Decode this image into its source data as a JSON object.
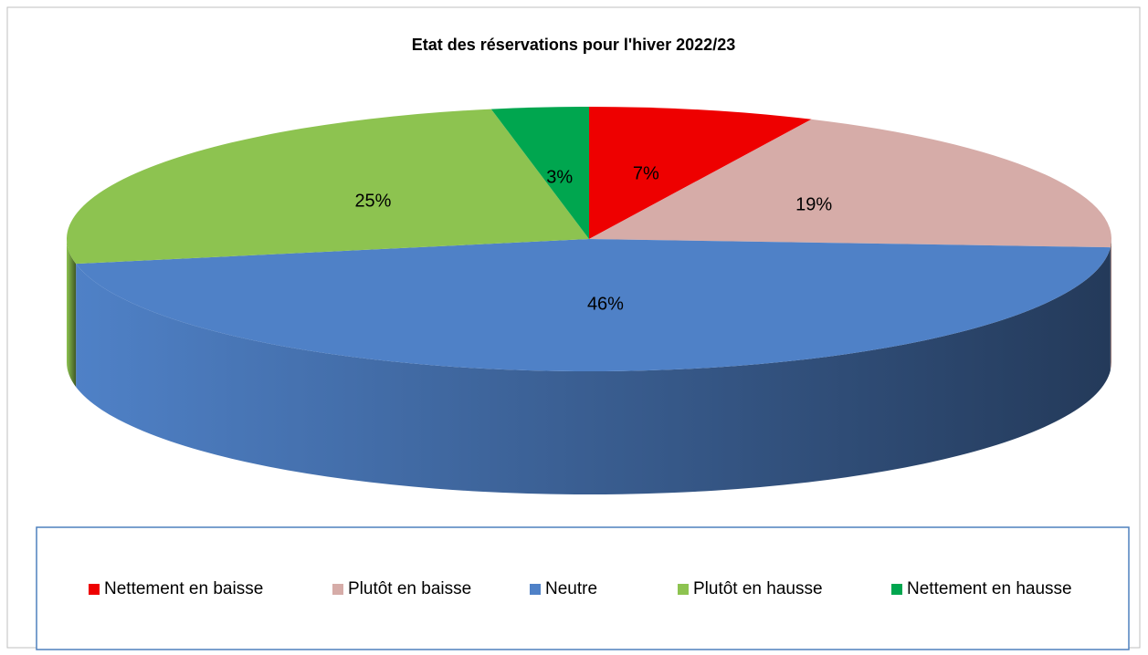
{
  "chart_data": {
    "type": "pie",
    "title": "Etat des réservations pour l'hiver 2022/23",
    "categories": [
      "Nettement en baisse",
      "Plutôt en baisse",
      "Neutre",
      "Plutôt en hausse",
      "Nettement en hausse"
    ],
    "values": [
      7,
      19,
      46,
      25,
      3
    ],
    "value_labels": [
      "7%",
      "19%",
      "46%",
      "25%",
      "3%"
    ],
    "colors": [
      "#ee0000",
      "#d6aca8",
      "#4f81c7",
      "#8dc350",
      "#00a64f"
    ],
    "legend": "bottom"
  }
}
